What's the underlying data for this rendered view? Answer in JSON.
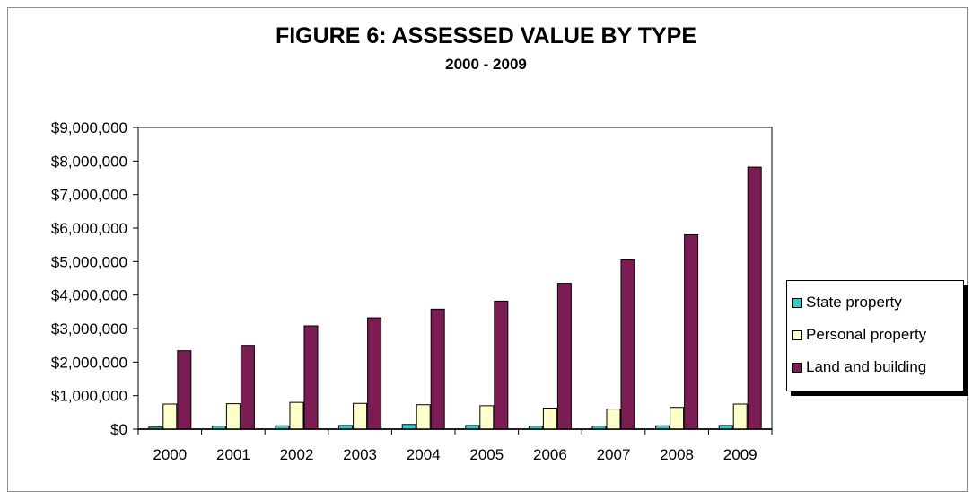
{
  "chart_data": {
    "type": "bar",
    "title": "FIGURE 6:  ASSESSED VALUE BY TYPE",
    "subtitle": "2000 - 2009",
    "xlabel": "",
    "ylabel": "",
    "categories": [
      "2000",
      "2001",
      "2002",
      "2003",
      "2004",
      "2005",
      "2006",
      "2007",
      "2008",
      "2009"
    ],
    "ylim": [
      0,
      9000000
    ],
    "yticks": [
      0,
      1000000,
      2000000,
      3000000,
      4000000,
      5000000,
      6000000,
      7000000,
      8000000,
      9000000
    ],
    "ytick_labels": [
      "$0",
      "$1,000,000",
      "$2,000,000",
      "$3,000,000",
      "$4,000,000",
      "$5,000,000",
      "$6,000,000",
      "$7,000,000",
      "$8,000,000",
      "$9,000,000"
    ],
    "grid": false,
    "legend_position": "right",
    "series": [
      {
        "name": "State property",
        "color": "#33cccc",
        "values": [
          60000,
          90000,
          100000,
          110000,
          140000,
          110000,
          90000,
          90000,
          100000,
          110000
        ]
      },
      {
        "name": "Personal property",
        "color": "#ffffcc",
        "values": [
          750000,
          760000,
          800000,
          770000,
          730000,
          700000,
          630000,
          600000,
          650000,
          750000
        ]
      },
      {
        "name": "Land and building",
        "color": "#7b1d52",
        "values": [
          2340000,
          2500000,
          3080000,
          3320000,
          3580000,
          3820000,
          4350000,
          5050000,
          5800000,
          7820000
        ]
      }
    ]
  }
}
